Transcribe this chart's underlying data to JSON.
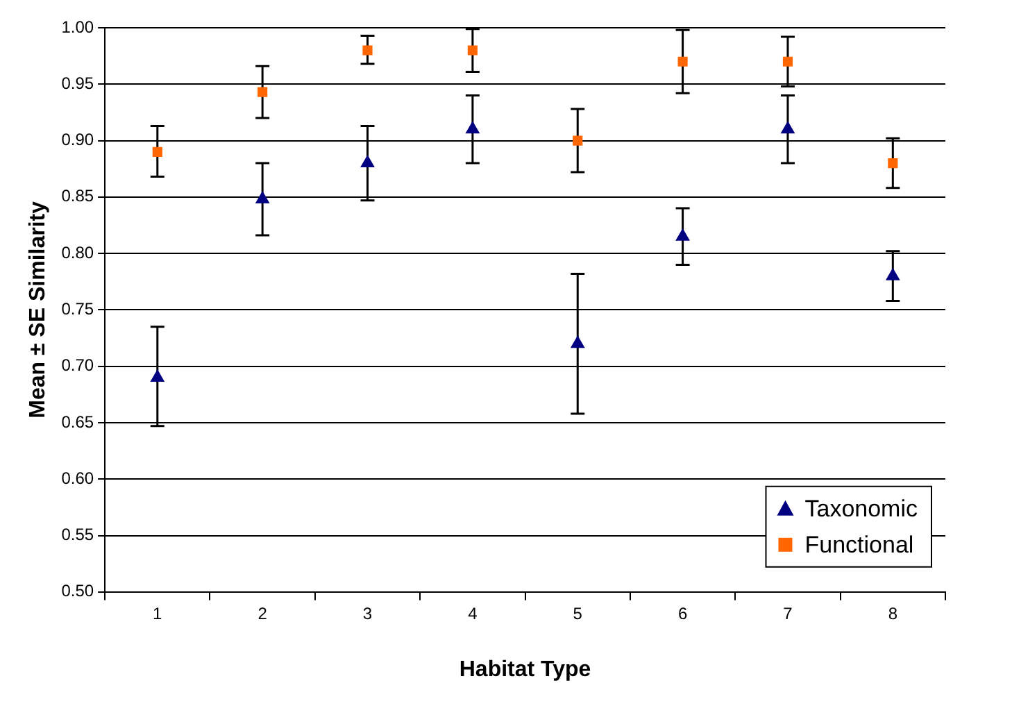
{
  "chart_data": {
    "type": "scatter",
    "xlabel": "Habitat Type",
    "ylabel": "Mean ± SE Similarity",
    "categories": [
      "1",
      "2",
      "3",
      "4",
      "5",
      "6",
      "7",
      "8"
    ],
    "series": [
      {
        "name": "Taxonomic",
        "color": "#000080",
        "marker": "triangle",
        "values": [
          0.69,
          0.848,
          0.88,
          0.91,
          0.72,
          0.815,
          0.91,
          0.78
        ],
        "errors": [
          [
            0.647,
            0.735
          ],
          [
            0.816,
            0.88
          ],
          [
            0.847,
            0.913
          ],
          [
            0.88,
            0.94
          ],
          [
            0.658,
            0.782
          ],
          [
            0.79,
            0.84
          ],
          [
            0.88,
            0.94
          ],
          [
            0.758,
            0.802
          ]
        ]
      },
      {
        "name": "Functional",
        "color": "#ff6600",
        "marker": "square",
        "values": [
          0.89,
          0.943,
          0.98,
          0.98,
          0.9,
          0.97,
          0.97,
          0.88
        ],
        "errors": [
          [
            0.868,
            0.913
          ],
          [
            0.92,
            0.966
          ],
          [
            0.968,
            0.993
          ],
          [
            0.961,
            0.999
          ],
          [
            0.872,
            0.928
          ],
          [
            0.942,
            0.998
          ],
          [
            0.948,
            0.992
          ],
          [
            0.858,
            0.902
          ]
        ]
      }
    ],
    "ylim": [
      0.5,
      1.0
    ],
    "yticks": [
      {
        "value": 0.5,
        "label": "0.50"
      },
      {
        "value": 0.55,
        "label": "0.55"
      },
      {
        "value": 0.6,
        "label": "0.60"
      },
      {
        "value": 0.65,
        "label": "0.65"
      },
      {
        "value": 0.7,
        "label": "0.70"
      },
      {
        "value": 0.75,
        "label": "0.75"
      },
      {
        "value": 0.8,
        "label": "0.80"
      },
      {
        "value": 0.85,
        "label": "0.85"
      },
      {
        "value": 0.9,
        "label": "0.90"
      },
      {
        "value": 0.95,
        "label": "0.95"
      },
      {
        "value": 1.0,
        "label": "1.00"
      }
    ],
    "grid": "y",
    "legend": "bottom right"
  }
}
